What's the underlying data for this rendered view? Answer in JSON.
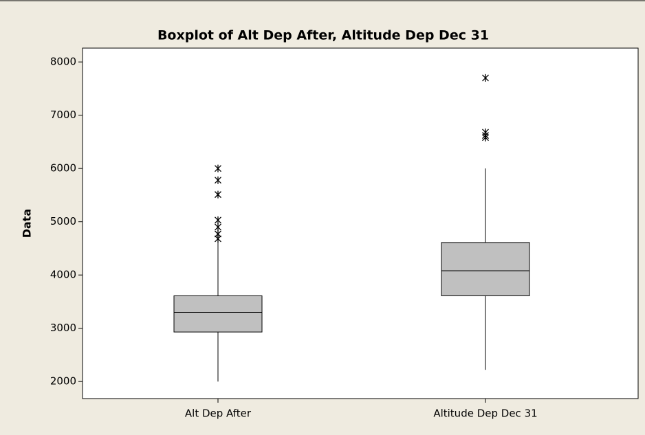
{
  "chart_data": {
    "type": "box",
    "title": "Boxplot of Alt Dep After, Altitude Dep Dec 31",
    "y_label": "Data",
    "categories": [
      "Alt Dep After",
      "Altitude Dep Dec 31"
    ],
    "boxes": [
      {
        "whisker_low": 2000,
        "q1": 2930,
        "median": 3300,
        "q3": 3610,
        "whisker_high": 4640,
        "outliers": [
          6000,
          5780,
          5510,
          5030,
          4900,
          4770,
          4680
        ]
      },
      {
        "whisker_low": 2220,
        "q1": 3610,
        "median": 4080,
        "q3": 4610,
        "whisker_high": 6000,
        "outliers": [
          7700,
          6680,
          6620,
          6580
        ]
      }
    ],
    "color": "#c0c0c0",
    "ylim": [
      1680,
      8260
    ],
    "yticks": [
      2000,
      3000,
      4000,
      5000,
      6000,
      7000,
      8000
    ]
  }
}
